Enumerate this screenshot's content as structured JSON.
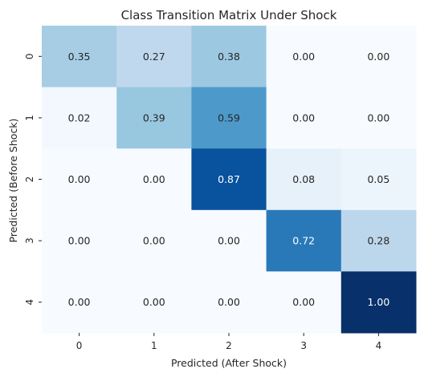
{
  "chart_data": {
    "type": "heatmap",
    "title": "Class Transition Matrix Under Shock",
    "xlabel": "Predicted (After Shock)",
    "ylabel": "Predicted (Before Shock)",
    "x_categories": [
      "0",
      "1",
      "2",
      "3",
      "4"
    ],
    "y_categories": [
      "0",
      "1",
      "2",
      "3",
      "4"
    ],
    "values": [
      [
        0.35,
        0.27,
        0.38,
        0.0,
        0.0
      ],
      [
        0.02,
        0.39,
        0.59,
        0.0,
        0.0
      ],
      [
        0.0,
        0.0,
        0.87,
        0.08,
        0.05
      ],
      [
        0.0,
        0.0,
        0.0,
        0.72,
        0.28
      ],
      [
        0.0,
        0.0,
        0.0,
        0.0,
        1.0
      ]
    ],
    "value_range": [
      0,
      1
    ],
    "colormap": "Blues",
    "grid": false,
    "colorbar": false
  }
}
